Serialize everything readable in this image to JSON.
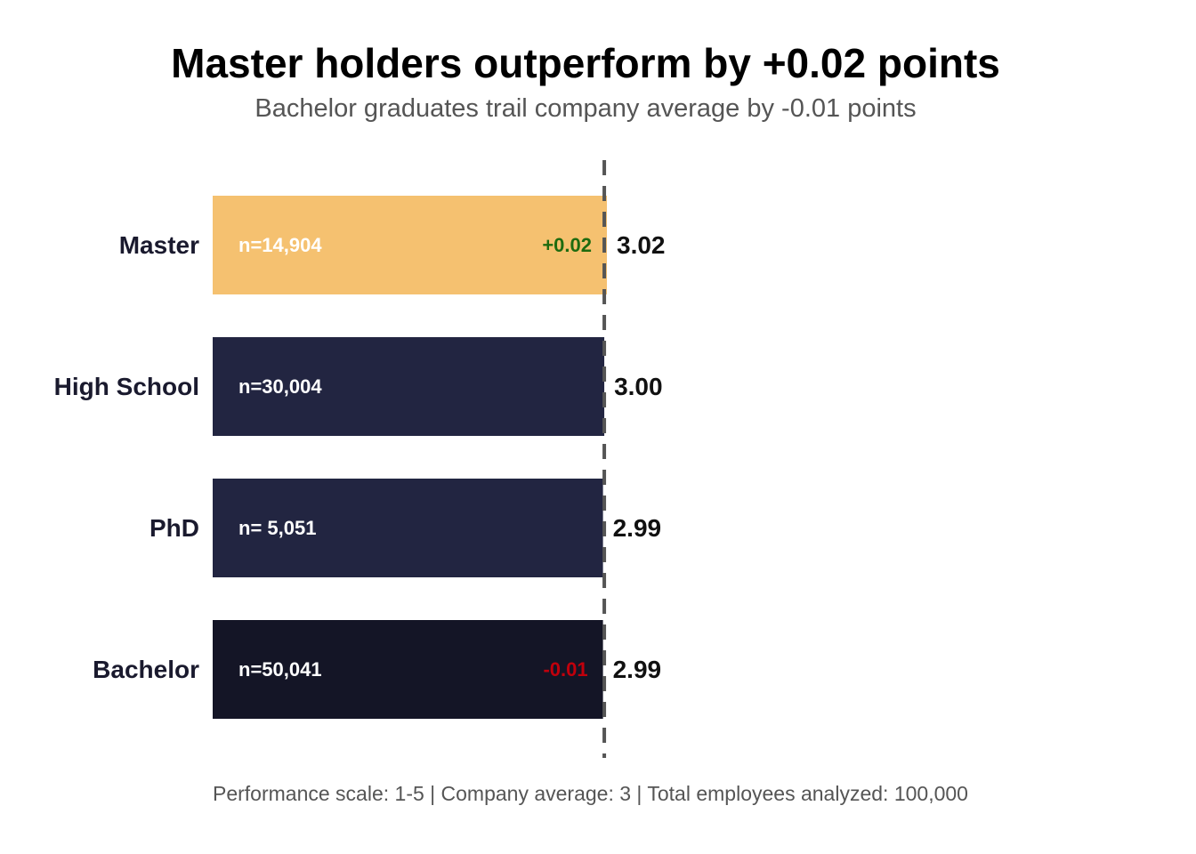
{
  "chart_data": {
    "type": "bar",
    "orientation": "horizontal",
    "title": "Master holders outperform by +0.02 points",
    "subtitle": "Bachelor graduates trail company average by -0.01 points",
    "caption": "Performance scale: 1-5 | Company average: 3 | Total employees analyzed: 100,000",
    "reference_line": {
      "value": 3,
      "style": "dashed",
      "color": "#555555"
    },
    "xlim": [
      0,
      3.02
    ],
    "grid": false,
    "legend": "none",
    "bars": [
      {
        "category": "Master",
        "value": 3.02,
        "value_label": "3.02",
        "n_label": "n=14,904",
        "diff_label": "+0.02",
        "diff_color": "#1e6b0f",
        "color": "#f5c170"
      },
      {
        "category": "High School",
        "value": 3.0,
        "value_label": "3.00",
        "n_label": "n=30,004",
        "diff_label": "",
        "diff_color": "",
        "color": "#222541"
      },
      {
        "category": "PhD",
        "value": 2.99,
        "value_label": "2.99",
        "n_label": "n= 5,051",
        "diff_label": "",
        "diff_color": "",
        "color": "#222541"
      },
      {
        "category": "Bachelor",
        "value": 2.99,
        "value_label": "2.99",
        "n_label": "n=50,041",
        "diff_label": "-0.01",
        "diff_color": "#c0000c",
        "color": "#141526"
      }
    ]
  }
}
